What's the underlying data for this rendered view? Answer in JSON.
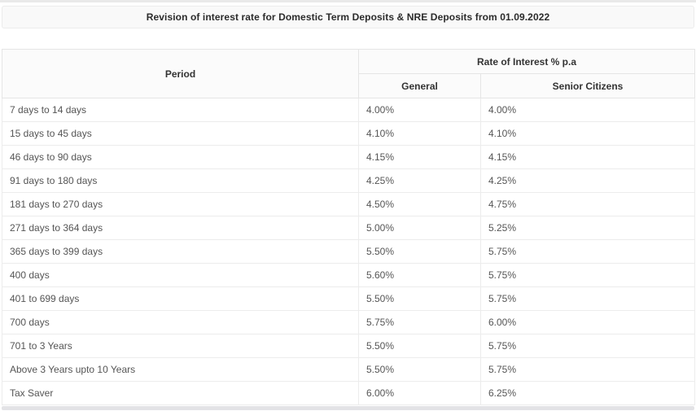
{
  "page": {
    "title": "Revision of interest rate for Domestic Term Deposits & NRE Deposits from 01.09.2022"
  },
  "table": {
    "header": {
      "period": "Period",
      "rate_group": "Rate of Interest % p.a",
      "general": "General",
      "senior": "Senior Citizens"
    },
    "rows": [
      {
        "period": "7 days to 14 days",
        "general": "4.00%",
        "senior": "4.00%"
      },
      {
        "period": "15 days to 45 days",
        "general": "4.10%",
        "senior": "4.10%"
      },
      {
        "period": "46 days to 90 days",
        "general": "4.15%",
        "senior": "4.15%"
      },
      {
        "period": "91 days to 180 days",
        "general": "4.25%",
        "senior": "4.25%"
      },
      {
        "period": "181 days to 270 days",
        "general": "4.50%",
        "senior": "4.75%"
      },
      {
        "period": "271 days to 364 days",
        "general": "5.00%",
        "senior": "5.25%"
      },
      {
        "period": "365 days to 399 days",
        "general": "5.50%",
        "senior": "5.75%"
      },
      {
        "period": "400 days",
        "general": "5.60%",
        "senior": "5.75%"
      },
      {
        "period": "401 to 699 days",
        "general": "5.50%",
        "senior": "5.75%"
      },
      {
        "period": "700 days",
        "general": "5.75%",
        "senior": "6.00%"
      },
      {
        "period": "701 to 3 Years",
        "general": "5.50%",
        "senior": "5.75%"
      },
      {
        "period": "Above 3 Years upto 10 Years",
        "general": "5.50%",
        "senior": "5.75%"
      },
      {
        "period": "Tax Saver",
        "general": "6.00%",
        "senior": "6.25%"
      }
    ]
  },
  "colors": {
    "title_bar_bg": "#f9f9f9",
    "header_bg": "#fbfbfb",
    "border": "#ececec",
    "text": "#555555",
    "heading_text": "#2b2b2b",
    "bottom_bar": "#e3e3e6"
  }
}
